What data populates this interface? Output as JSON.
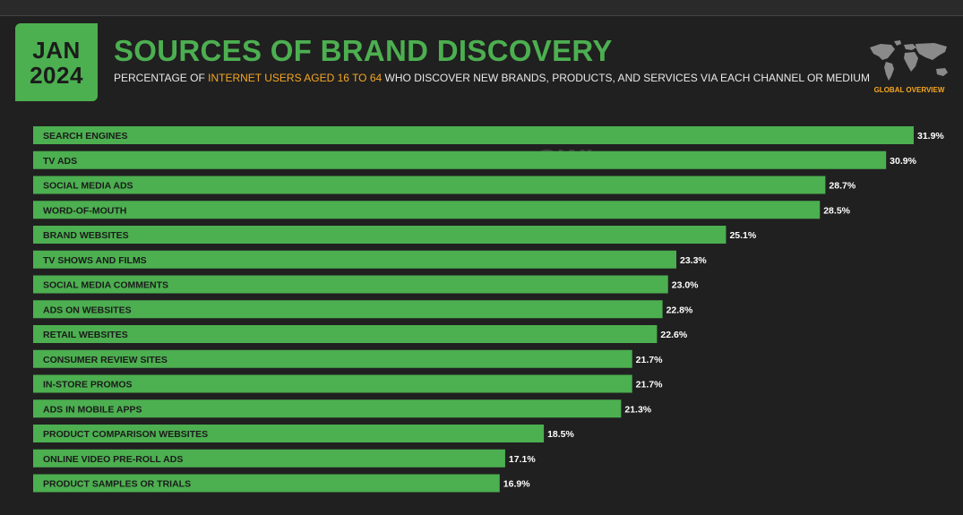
{
  "header": {
    "date_month": "JAN",
    "date_year": "2024",
    "title": "SOURCES OF BRAND DISCOVERY",
    "subtitle_pre": "PERCENTAGE OF ",
    "subtitle_highlight": "INTERNET USERS AGED 16 TO 64",
    "subtitle_post": " WHO DISCOVER NEW BRANDS, PRODUCTS, AND SERVICES VIA EACH CHANNEL OR MEDIUM",
    "region_label": "GLOBAL OVERVIEW",
    "map_icon": "world-map-icon"
  },
  "watermark": {
    "left": "DATAREPORTAL",
    "right": "GWI."
  },
  "colors": {
    "accent": "#4caf50",
    "highlight": "#f5a623",
    "background": "#202020",
    "bar_text": "#1b1b1b",
    "value_text": "#ffffff"
  },
  "chart_data": {
    "type": "bar",
    "orientation": "horizontal",
    "unit": "%",
    "xlim": [
      0,
      31.9
    ],
    "grid": false,
    "categories": [
      "SEARCH ENGINES",
      "TV ADS",
      "SOCIAL MEDIA ADS",
      "WORD-OF-MOUTH",
      "BRAND WEBSITES",
      "TV SHOWS AND FILMS",
      "SOCIAL MEDIA COMMENTS",
      "ADS ON WEBSITES",
      "RETAIL WEBSITES",
      "CONSUMER REVIEW SITES",
      "IN-STORE PROMOS",
      "ADS IN MOBILE APPS",
      "PRODUCT COMPARISON WEBSITES",
      "ONLINE VIDEO PRE-ROLL ADS",
      "PRODUCT SAMPLES OR TRIALS"
    ],
    "values": [
      31.9,
      30.9,
      28.7,
      28.5,
      25.1,
      23.3,
      23.0,
      22.8,
      22.6,
      21.7,
      21.7,
      21.3,
      18.5,
      17.1,
      16.9
    ],
    "value_labels": [
      "31.9%",
      "30.9%",
      "28.7%",
      "28.5%",
      "25.1%",
      "23.3%",
      "23.0%",
      "22.8%",
      "22.6%",
      "21.7%",
      "21.7%",
      "21.3%",
      "18.5%",
      "17.1%",
      "16.9%"
    ]
  }
}
